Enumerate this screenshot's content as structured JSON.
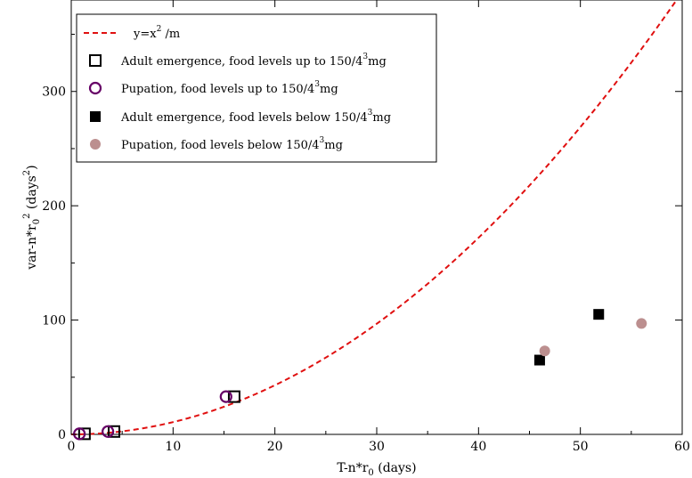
{
  "chart_data": {
    "type": "scatter",
    "xlabel": {
      "base": "T-n*r",
      "sub": "0",
      "tail": " (days)"
    },
    "ylabel": {
      "base": "var-n*r",
      "sub": "0",
      "sup": "2",
      "tail": " (days",
      "sup2": "2",
      "close": ")"
    },
    "xlim": [
      0,
      60
    ],
    "ylim": [
      0,
      380
    ],
    "xticks": [
      0,
      10,
      20,
      30,
      40,
      50,
      60
    ],
    "yticks": [
      0,
      100,
      200,
      300
    ],
    "xtick_labels": [
      "0",
      "10",
      "20",
      "30",
      "40",
      "50",
      "60"
    ],
    "ytick_labels": [
      "0",
      "100",
      "200",
      "300"
    ],
    "grid": false,
    "legend_position": "top-left",
    "curve": {
      "name_parts": {
        "a": "y=x",
        "sup": "2",
        "b": " /m"
      },
      "formula": "y = x^2 / m",
      "m": 9.3,
      "color": "#e01010",
      "style": "dashed"
    },
    "series": [
      {
        "name": "Adult emergence, food levels up to 150/4³mg",
        "name_parts": {
          "a": "Adult emergence, food levels up to 150/4",
          "sup": "3",
          "b": "mg"
        },
        "marker": "open-square",
        "color": "#000000",
        "points": [
          [
            1.3,
            0.5
          ],
          [
            4.2,
            2.5
          ],
          [
            16.0,
            33.0
          ]
        ]
      },
      {
        "name": "Pupation, food levels up to 150/4³mg",
        "name_parts": {
          "a": "Pupation, food levels up to 150/4",
          "sup": "3",
          "b": "mg"
        },
        "marker": "open-circle",
        "color": "#660066",
        "points": [
          [
            0.8,
            0.5
          ],
          [
            3.6,
            2.5
          ],
          [
            15.2,
            33.0
          ]
        ]
      },
      {
        "name": "Adult emergence, food levels below 150/4³mg",
        "name_parts": {
          "a": "Adult emergence, food levels below 150/4",
          "sup": "3",
          "b": "mg"
        },
        "marker": "filled-square",
        "color": "#000000",
        "points": [
          [
            46.0,
            65.0
          ],
          [
            51.8,
            105.0
          ]
        ]
      },
      {
        "name": "Pupation, food levels below 150/4³mg",
        "name_parts": {
          "a": "Pupation, food levels below 150/4",
          "sup": "3",
          "b": "mg"
        },
        "marker": "filled-circle",
        "color": "#bc8f8f",
        "points": [
          [
            46.5,
            73.0
          ],
          [
            56.0,
            97.0
          ]
        ]
      }
    ]
  }
}
